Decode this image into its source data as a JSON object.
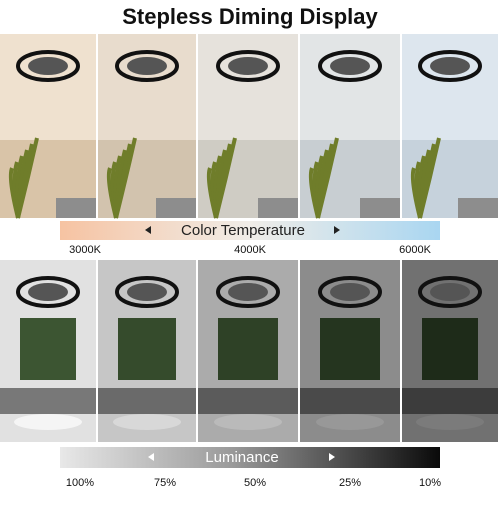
{
  "header": {
    "title": "Stepless Diming Display"
  },
  "color_temperature": {
    "label": "Color Temperature",
    "stops": [
      "3000K",
      "4000K",
      "6000K"
    ]
  },
  "luminance": {
    "label": "Luminance",
    "stops": [
      "100%",
      "75%",
      "50%",
      "25%",
      "10%"
    ]
  }
}
